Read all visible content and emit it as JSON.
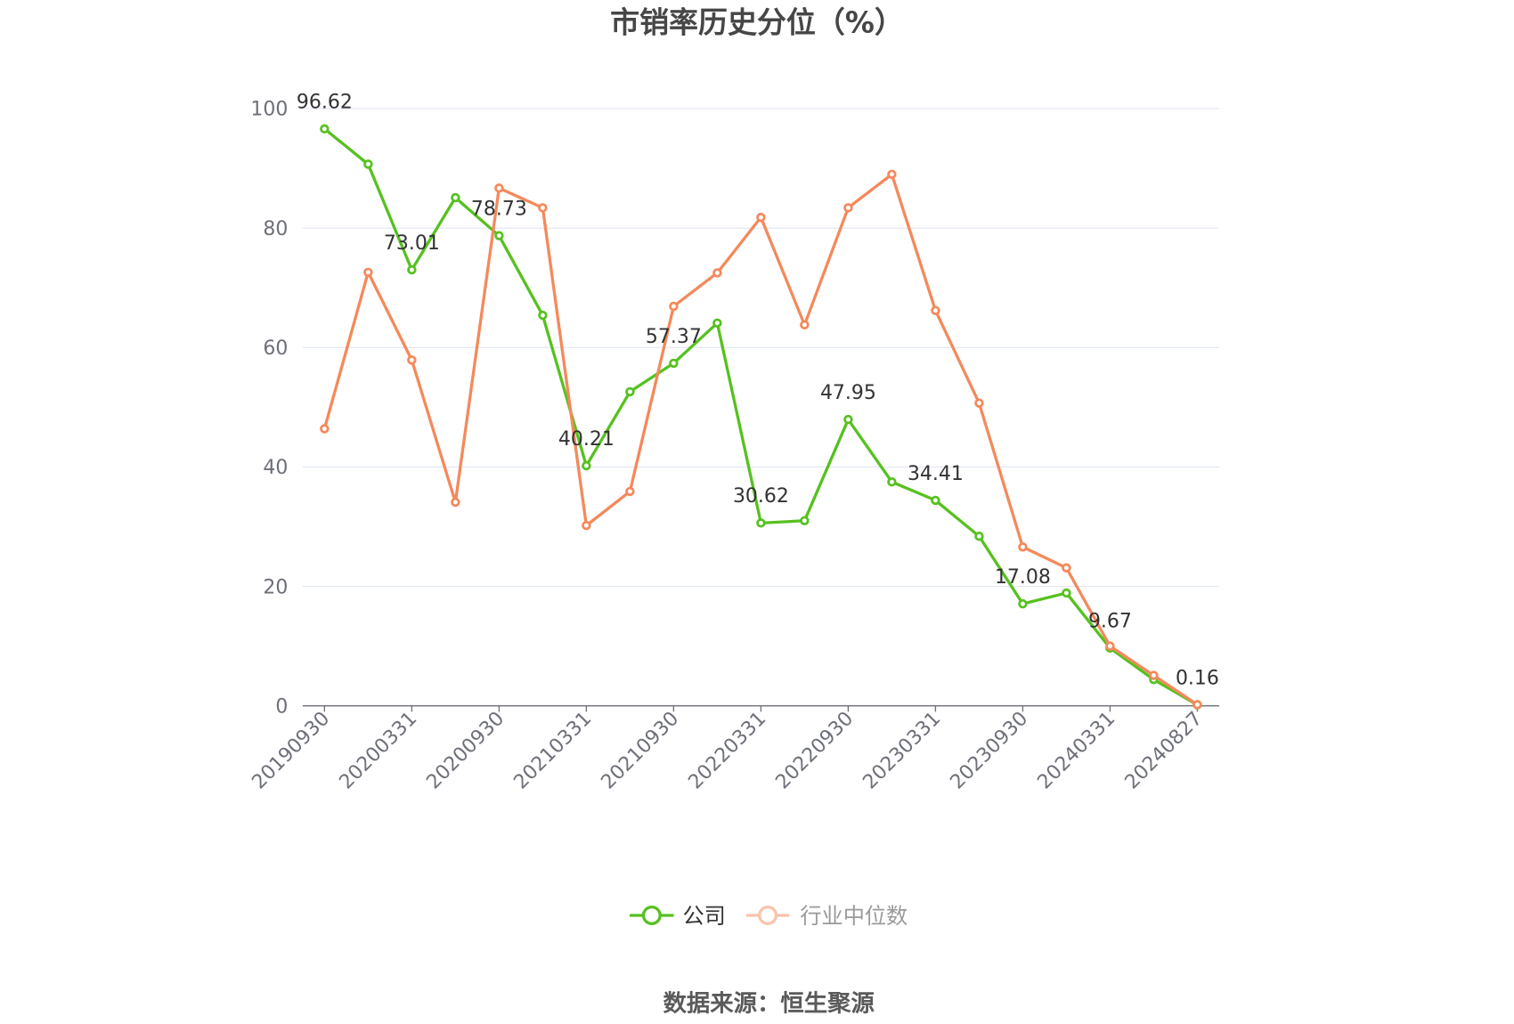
{
  "source": "数据来源：恒生聚源",
  "chart_data": {
    "type": "line",
    "title": "市销率历史分位（%）",
    "categories": [
      "20190930",
      "",
      "20200331",
      "",
      "20200930",
      "",
      "20210331",
      "",
      "20210930",
      "",
      "20220331",
      "",
      "20220930",
      "",
      "20230331",
      "",
      "20230930",
      "",
      "20240331",
      "",
      "20240827"
    ],
    "ylim": [
      0,
      100
    ],
    "yticks": [
      0,
      20,
      40,
      60,
      80,
      100
    ],
    "grid": true,
    "legend_position": "bottom",
    "series": [
      {
        "name": "公司",
        "color": "#56c11f",
        "values": [
          96.62,
          90.7,
          73.01,
          85.1,
          78.73,
          65.4,
          40.21,
          52.6,
          57.37,
          64.1,
          30.62,
          31.0,
          47.95,
          37.5,
          34.41,
          28.4,
          17.08,
          18.9,
          9.67,
          4.4,
          0.16
        ],
        "data_labels": [
          "96.62",
          null,
          "73.01",
          null,
          "78.73",
          null,
          "40.21",
          null,
          "57.37",
          null,
          "30.62",
          null,
          "47.95",
          null,
          "34.41",
          null,
          "17.08",
          null,
          "9.67",
          null,
          "0.16"
        ]
      },
      {
        "name": "行业中位数",
        "color": "#f4895b",
        "values": [
          46.4,
          72.6,
          57.9,
          34.1,
          86.7,
          83.4,
          30.2,
          35.9,
          66.9,
          72.5,
          81.8,
          63.8,
          83.4,
          89.0,
          66.2,
          50.7,
          26.6,
          23.1,
          10.0,
          5.1,
          0.2
        ]
      }
    ]
  }
}
